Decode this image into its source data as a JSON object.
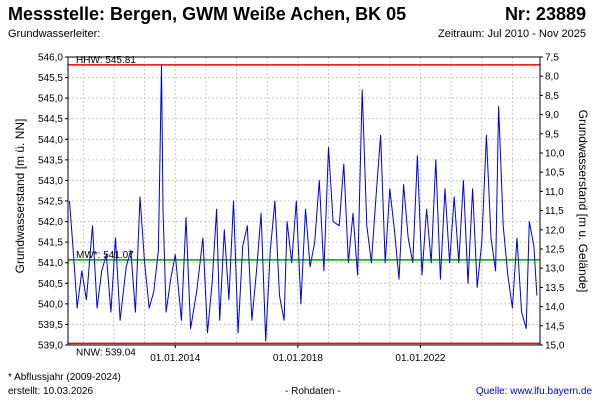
{
  "header": {
    "title": "Messstelle: Bergen, GWM Weiße Achen, BK 05",
    "nr": "Nr: 23889",
    "aquifer_label": "Grundwasserleiter:",
    "period": "Zeitraum: Jul 2010 - Nov 2025"
  },
  "footer": {
    "note": "* Abflussjahr (2009-2024)",
    "created": "erstellt:  10.03.2026",
    "data_type": "- Rohdaten -",
    "source": "Quelle:  www.lfu.bayern.de"
  },
  "colors": {
    "series": "#0000dd",
    "hhw": "#ff0000",
    "nnw": "#ff0000",
    "mw": "#00a000",
    "grid": "#c8c8c8"
  },
  "chart_data": {
    "type": "line",
    "xlabel": "",
    "ylabel": "Grundwasserstand [m ü. NN]",
    "y2label": "Grundwasserstand [m u. Gelände]",
    "xlim": [
      2010.5,
      2025.9
    ],
    "ylim": [
      539.0,
      546.0
    ],
    "y2lim": [
      15.0,
      7.5
    ],
    "y_ticks": [
      "539,0",
      "539,5",
      "540,0",
      "540,5",
      "541,0",
      "541,5",
      "542,0",
      "542,5",
      "543,0",
      "543,5",
      "544,0",
      "544,5",
      "545,0",
      "545,5",
      "546,0"
    ],
    "y2_ticks": [
      "7,5",
      "8,0",
      "8,5",
      "9,0",
      "9,5",
      "10,0",
      "10,5",
      "11,0",
      "11,5",
      "12,0",
      "12,5",
      "13,0",
      "13,5",
      "14,0",
      "14,5",
      "15,0"
    ],
    "x_tick_labels": [
      {
        "x": 2014.0,
        "label": "01.01.2014"
      },
      {
        "x": 2018.0,
        "label": "01.01.2018"
      },
      {
        "x": 2022.0,
        "label": "01.01.2022"
      }
    ],
    "grid": true,
    "reference_lines": [
      {
        "name": "HHW",
        "label": "HHW: 545.81",
        "value": 545.81
      },
      {
        "name": "MW",
        "label": "MW*: 541.07",
        "value": 541.07
      },
      {
        "name": "NNW",
        "label": "NNW: 539.04",
        "value": 539.04
      }
    ],
    "series": [
      {
        "name": "",
        "x": [
          2010.55,
          2010.65,
          2010.8,
          2010.95,
          2011.1,
          2011.3,
          2011.45,
          2011.6,
          2011.75,
          2011.9,
          2012.05,
          2012.2,
          2012.4,
          2012.55,
          2012.7,
          2012.85,
          2013.0,
          2013.15,
          2013.3,
          2013.45,
          2013.55,
          2013.6,
          2013.7,
          2013.85,
          2014.0,
          2014.2,
          2014.35,
          2014.5,
          2014.7,
          2014.9,
          2015.05,
          2015.2,
          2015.35,
          2015.45,
          2015.6,
          2015.75,
          2015.9,
          2016.05,
          2016.2,
          2016.35,
          2016.5,
          2016.65,
          2016.8,
          2016.95,
          2017.1,
          2017.25,
          2017.4,
          2017.55,
          2017.65,
          2017.8,
          2017.95,
          2018.1,
          2018.25,
          2018.4,
          2018.55,
          2018.7,
          2018.85,
          2019.0,
          2019.15,
          2019.35,
          2019.5,
          2019.65,
          2019.8,
          2019.95,
          2020.1,
          2020.25,
          2020.4,
          2020.55,
          2020.7,
          2020.85,
          2021.0,
          2021.15,
          2021.3,
          2021.45,
          2021.6,
          2021.75,
          2021.9,
          2022.05,
          2022.2,
          2022.35,
          2022.5,
          2022.65,
          2022.8,
          2022.95,
          2023.1,
          2023.25,
          2023.4,
          2023.55,
          2023.7,
          2023.85,
          2024.0,
          2024.15,
          2024.3,
          2024.45,
          2024.55,
          2024.7,
          2024.85,
          2025.0,
          2025.15,
          2025.3,
          2025.45,
          2025.55,
          2025.7,
          2025.8
        ],
        "y": [
          542.5,
          541.5,
          539.9,
          540.8,
          540.1,
          541.9,
          539.9,
          540.8,
          541.2,
          539.8,
          541.6,
          539.6,
          540.9,
          541.3,
          539.8,
          542.6,
          541.0,
          539.9,
          540.3,
          541.3,
          545.8,
          542.3,
          539.8,
          540.6,
          541.2,
          539.6,
          542.1,
          539.4,
          540.3,
          541.6,
          539.3,
          540.5,
          542.3,
          539.6,
          541.8,
          540.1,
          542.5,
          539.3,
          541.4,
          541.9,
          539.6,
          540.8,
          542.2,
          539.1,
          541.3,
          542.5,
          540.2,
          539.6,
          542.0,
          541.0,
          542.5,
          540.0,
          542.3,
          540.9,
          541.5,
          543.0,
          540.8,
          543.8,
          542.0,
          541.9,
          543.4,
          541.0,
          542.2,
          540.7,
          545.2,
          541.9,
          541.0,
          542.6,
          544.1,
          541.0,
          542.8,
          541.8,
          540.6,
          542.9,
          541.6,
          541.0,
          543.6,
          540.7,
          542.3,
          541.0,
          543.5,
          540.6,
          542.8,
          541.0,
          542.6,
          541.0,
          543.0,
          540.5,
          542.8,
          540.4,
          541.5,
          544.1,
          541.6,
          540.8,
          544.8,
          541.9,
          540.7,
          539.9,
          541.6,
          539.8,
          539.4,
          542.0,
          541.4,
          540.2
        ]
      }
    ]
  }
}
